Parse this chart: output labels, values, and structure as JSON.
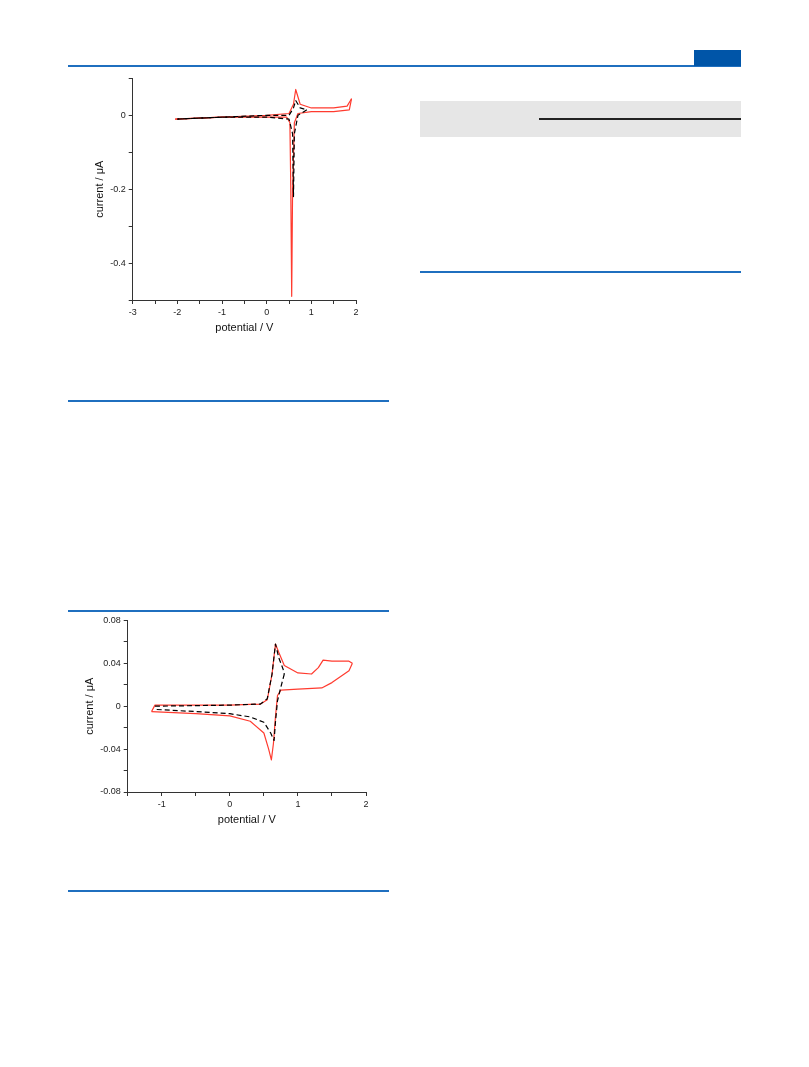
{
  "chart_data": [
    {
      "type": "line",
      "xlabel": "potential / V",
      "ylabel": "current / μA",
      "xlim": [
        -3,
        2
      ],
      "xticks": [
        -3,
        {
          "value": -2.5,
          "label": null
        },
        -2,
        {
          "value": -1.5,
          "label": null
        },
        -1,
        {
          "value": -0.5,
          "label": null
        },
        0,
        {
          "value": 0.5,
          "label": null
        },
        1,
        {
          "value": 1.5,
          "label": null
        },
        2
      ],
      "ylim": [
        -0.5,
        0.1
      ],
      "yticks": [
        {
          "value": 0.1,
          "label": null
        },
        0,
        {
          "value": -0.1,
          "label": null
        },
        -0.2,
        {
          "value": -0.3,
          "label": null
        },
        -0.4,
        {
          "value": -0.5,
          "label": null
        }
      ],
      "grid": false,
      "legend": false,
      "marker": "none",
      "series": [
        {
          "color": "#ff3b2f",
          "line_style": "solid",
          "x": [
            -2.05,
            -1,
            0,
            0.5,
            0.6,
            0.65,
            0.75,
            1.0,
            1.5,
            1.8,
            1.9
          ],
          "values": [
            -0.01,
            -0.005,
            0,
            0.005,
            0.03,
            0.07,
            0.03,
            0.02,
            0.02,
            0.025,
            0.045
          ]
        },
        {
          "color": "#ff3b2f",
          "line_style": "solid",
          "x": [
            1.9,
            1.85,
            1.5,
            1.0,
            0.7,
            0.62,
            0.58,
            0.56,
            0.54,
            0.52,
            0.45,
            0,
            -1,
            -2.05
          ],
          "values": [
            0.045,
            0.015,
            0.01,
            0.01,
            0.005,
            -0.02,
            -0.2,
            -0.49,
            -0.2,
            -0.02,
            -0.005,
            -0.005,
            -0.005,
            -0.01
          ]
        },
        {
          "color": "#000000",
          "line_style": "dashed",
          "x": [
            -2.0,
            -1,
            0,
            0.5,
            0.6,
            0.65,
            0.75,
            0.9
          ],
          "values": [
            -0.01,
            -0.005,
            0,
            0,
            0.02,
            0.04,
            0.02,
            0.015
          ]
        },
        {
          "color": "#000000",
          "line_style": "dashed",
          "x": [
            0.9,
            0.7,
            0.62,
            0.6,
            0.58,
            0.5,
            0,
            -1,
            -2.0
          ],
          "values": [
            0.015,
            0,
            -0.05,
            -0.22,
            -0.05,
            -0.01,
            -0.005,
            -0.005,
            -0.01
          ]
        }
      ]
    },
    {
      "type": "line",
      "xlabel": "potential / V",
      "ylabel": "current / μA",
      "xlim": [
        -1.5,
        2
      ],
      "xticks": [
        {
          "value": -1.5,
          "label": null
        },
        -1,
        {
          "value": -0.5,
          "label": null
        },
        0,
        {
          "value": 0.5,
          "label": null
        },
        1,
        {
          "value": 1.5,
          "label": null
        },
        2
      ],
      "ylim": [
        -0.08,
        0.08
      ],
      "yticks": [
        0.08,
        {
          "value": 0.06,
          "label": null
        },
        0.04,
        {
          "value": 0.02,
          "label": null
        },
        0,
        {
          "value": -0.02,
          "label": null
        },
        -0.04,
        {
          "value": -0.06,
          "label": null
        },
        -0.08
      ],
      "grid": false,
      "legend": false,
      "marker": "none",
      "series": [
        {
          "color": "#ff3b2f",
          "line_style": "solid",
          "x": [
            -1.15,
            -1.1,
            0,
            0.45,
            0.55,
            0.62,
            0.67,
            0.72,
            0.8,
            1.0,
            1.2,
            1.3,
            1.37,
            1.5,
            1.75,
            1.8
          ],
          "values": [
            -0.005,
            0.001,
            0.001,
            0.002,
            0.006,
            0.03,
            0.058,
            0.05,
            0.038,
            0.031,
            0.03,
            0.036,
            0.043,
            0.042,
            0.042,
            0.04
          ]
        },
        {
          "color": "#ff3b2f",
          "line_style": "solid",
          "x": [
            1.8,
            1.75,
            1.5,
            1.35,
            1.0,
            0.75,
            0.7,
            0.67,
            0.64,
            0.61,
            0.57,
            0.5,
            0.3,
            0,
            -0.5,
            -1.15
          ],
          "values": [
            0.04,
            0.033,
            0.022,
            0.017,
            0.016,
            0.015,
            0.01,
            -0.01,
            -0.035,
            -0.05,
            -0.04,
            -0.025,
            -0.014,
            -0.009,
            -0.007,
            -0.005
          ]
        },
        {
          "color": "#000000",
          "line_style": "dashed",
          "x": [
            -1.1,
            0,
            0.45,
            0.55,
            0.62,
            0.67,
            0.72,
            0.78,
            0.8
          ],
          "values": [
            0,
            0.001,
            0.002,
            0.007,
            0.03,
            0.058,
            0.045,
            0.035,
            0.03
          ]
        },
        {
          "color": "#000000",
          "line_style": "dashed",
          "x": [
            0.8,
            0.75,
            0.7,
            0.67,
            0.65,
            0.6,
            0.5,
            0.3,
            0,
            -0.5,
            -1.1
          ],
          "values": [
            0.03,
            0.018,
            0.005,
            -0.015,
            -0.032,
            -0.025,
            -0.015,
            -0.01,
            -0.007,
            -0.005,
            -0.003
          ]
        }
      ]
    }
  ]
}
